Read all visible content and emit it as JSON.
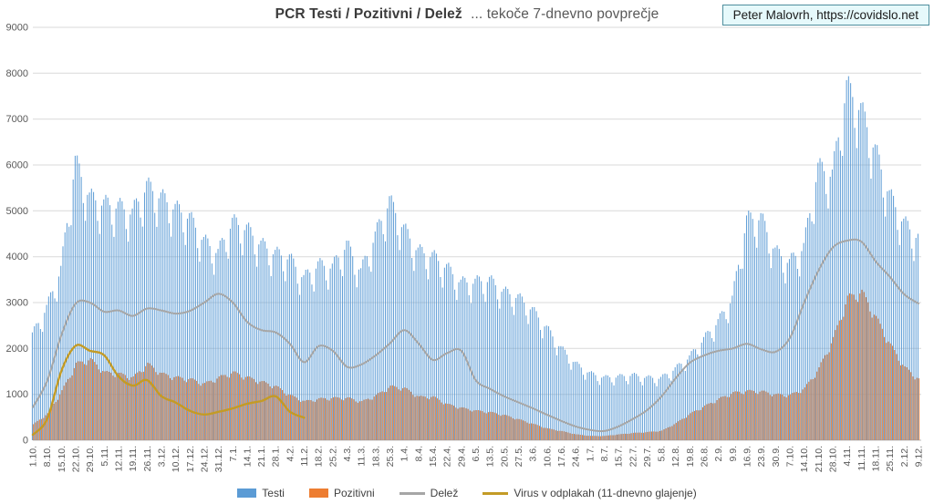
{
  "title": {
    "bold": "PCR Testi / Pozitivni / Delež",
    "rest": "... tekoče 7-dnevno povprečje"
  },
  "attribution": "Peter Malovrh, https://covidslo.net",
  "colors": {
    "tests_bar": "#5b9bd5",
    "positives_bar": "#ed7d31",
    "share_line": "#a6a6a6",
    "wastewater_line": "#c39b26",
    "gridline": "#d9d9d9",
    "axis_text": "#595959",
    "attribution_border": "#4e8e9d",
    "attribution_bg": "#e6f9fb"
  },
  "legend": [
    {
      "label": "Testi",
      "type": "bar",
      "color": "#5b9bd5"
    },
    {
      "label": "Pozitivni",
      "type": "bar",
      "color": "#ed7d31"
    },
    {
      "label": "Delež",
      "type": "line",
      "color": "#a6a6a6"
    },
    {
      "label": "Virus v odplakah (11-dnevno glajenje)",
      "type": "line",
      "color": "#c39b26"
    }
  ],
  "chart_data": {
    "type": "bar+line",
    "title": "PCR Testi / Pozitivni / Delež ... tekoče 7-dnevno povprečje",
    "ylim": [
      0,
      9000
    ],
    "y_ticks": [
      0,
      1000,
      2000,
      3000,
      4000,
      5000,
      6000,
      7000,
      8000,
      9000
    ],
    "grid": true,
    "x_label_rotation": -90,
    "legend_position": "bottom",
    "sampling_note": "values sampled at weekly x tick dates; bars rendered daily by interpolation",
    "x_tick_labels": [
      "1.10.",
      "8.10.",
      "15.10.",
      "22.10.",
      "29.10.",
      "5.11.",
      "12.11.",
      "19.11.",
      "26.11.",
      "3.12.",
      "10.12.",
      "17.12.",
      "24.12.",
      "31.12.",
      "7.1.",
      "14.1.",
      "21.1.",
      "28.1.",
      "4.2.",
      "11.2.",
      "18.2.",
      "25.2.",
      "4.3.",
      "11.3.",
      "18.3.",
      "25.3.",
      "1.4.",
      "8.4.",
      "15.4.",
      "22.4.",
      "29.4.",
      "6.5.",
      "13.5.",
      "20.5.",
      "27.5.",
      "3.6.",
      "10.6.",
      "17.6.",
      "24.6.",
      "1.7.",
      "8.7.",
      "15.7.",
      "22.7.",
      "29.7.",
      "5.8.",
      "12.8.",
      "19.8.",
      "26.8.",
      "2.9.",
      "9.9.",
      "16.9.",
      "23.9.",
      "30.9.",
      "7.10.",
      "14.10.",
      "21.10.",
      "28.10.",
      "4.11.",
      "11.11.",
      "18.11.",
      "25.11.",
      "2.12.",
      "9.12."
    ],
    "series": [
      {
        "name": "Testi",
        "type": "bar",
        "color": "#5b9bd5",
        "values": [
          2350,
          2950,
          3800,
          6200,
          5400,
          5250,
          5200,
          5050,
          5650,
          5400,
          5150,
          4950,
          4430,
          4170,
          4850,
          4700,
          4350,
          4150,
          4050,
          3600,
          3900,
          3850,
          4350,
          3750,
          4550,
          5320,
          4700,
          4200,
          4100,
          3840,
          3500,
          3520,
          3560,
          3300,
          3180,
          2900,
          2500,
          2050,
          1710,
          1490,
          1390,
          1410,
          1450,
          1390,
          1380,
          1590,
          1850,
          2250,
          2640,
          3150,
          4900,
          4950,
          4200,
          3950,
          4300,
          6050,
          5900,
          7850,
          7350,
          6450,
          5450,
          4830,
          4500
        ]
      },
      {
        "name": "Pozitivni",
        "type": "bar",
        "color": "#ed7d31",
        "values": [
          350,
          590,
          1090,
          1690,
          1790,
          1500,
          1470,
          1390,
          1690,
          1470,
          1390,
          1350,
          1250,
          1390,
          1500,
          1390,
          1290,
          1190,
          990,
          860,
          915,
          935,
          935,
          855,
          990,
          1190,
          1150,
          960,
          960,
          795,
          715,
          655,
          620,
          555,
          460,
          360,
          260,
          200,
          130,
          95,
          95,
          130,
          160,
          180,
          210,
          380,
          590,
          755,
          915,
          1050,
          1090,
          1080,
          1010,
          1000,
          1150,
          1590,
          2250,
          3150,
          3280,
          2710,
          2110,
          1610,
          1350
        ]
      },
      {
        "name": "Delež",
        "type": "line",
        "color": "#a6a6a6",
        "values": [
          720,
          1290,
          2290,
          2980,
          3000,
          2800,
          2830,
          2710,
          2870,
          2830,
          2760,
          2820,
          3000,
          3190,
          3000,
          2580,
          2400,
          2350,
          2100,
          1700,
          2050,
          1950,
          1600,
          1650,
          1850,
          2110,
          2400,
          2110,
          1750,
          1900,
          1950,
          1310,
          1120,
          955,
          825,
          695,
          555,
          420,
          300,
          225,
          200,
          300,
          460,
          655,
          950,
          1350,
          1690,
          1850,
          1950,
          2000,
          2100,
          1980,
          1930,
          2230,
          3000,
          3700,
          4200,
          4350,
          4330,
          3900,
          3560,
          3180,
          2980
        ]
      },
      {
        "name": "Virus v odplakah (11-dnevno glajenje)",
        "type": "line",
        "color": "#c39b26",
        "values": [
          120,
          460,
          1510,
          2060,
          1950,
          1850,
          1390,
          1190,
          1310,
          960,
          820,
          640,
          560,
          620,
          695,
          795,
          855,
          955,
          620,
          490,
          null,
          null,
          null,
          null,
          null,
          null,
          null,
          null,
          null,
          null,
          null,
          null,
          null,
          null,
          null,
          null,
          null,
          null,
          null,
          null,
          null,
          null,
          null,
          null,
          null,
          null,
          null,
          null,
          null,
          null,
          null,
          null,
          null,
          null,
          null,
          null,
          null,
          null,
          null,
          null,
          null,
          null,
          null
        ]
      }
    ]
  }
}
